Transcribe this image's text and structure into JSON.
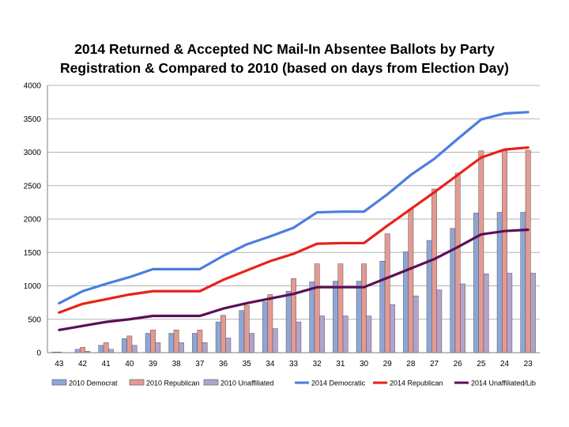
{
  "chart_data": {
    "type": "bar",
    "title_lines": [
      "2014 Returned & Accepted NC Mail-In Absentee Ballots by Party",
      "Registration & Compared to 2010 (based on days from Election Day)"
    ],
    "xlabel": "",
    "ylabel": "",
    "categories": [
      "43",
      "42",
      "41",
      "40",
      "39",
      "38",
      "37",
      "36",
      "35",
      "34",
      "33",
      "32",
      "31",
      "30",
      "29",
      "28",
      "27",
      "26",
      "25",
      "24",
      "23"
    ],
    "ylim": [
      0,
      4000
    ],
    "yticks": [
      0,
      500,
      1000,
      1500,
      2000,
      2500,
      3000,
      3500,
      4000
    ],
    "grid": true,
    "legend_position": "bottom",
    "bar_series": [
      {
        "name": "2010 Democrat",
        "color": "#8ea6d6",
        "values": [
          10,
          50,
          110,
          210,
          290,
          290,
          290,
          460,
          630,
          760,
          920,
          1060,
          1070,
          1070,
          1370,
          1510,
          1680,
          1860,
          2090,
          2100,
          2100
        ]
      },
      {
        "name": "2010 Republican",
        "color": "#e49a92",
        "values": [
          10,
          80,
          150,
          250,
          340,
          340,
          340,
          560,
          710,
          870,
          1110,
          1330,
          1330,
          1330,
          1780,
          2150,
          2450,
          2690,
          3020,
          3020,
          3030
        ]
      },
      {
        "name": "2010 Unaffiliated",
        "color": "#b3a3cc",
        "values": [
          0,
          20,
          50,
          110,
          150,
          150,
          150,
          220,
          290,
          360,
          460,
          550,
          550,
          550,
          720,
          850,
          940,
          1030,
          1180,
          1190,
          1190
        ]
      }
    ],
    "line_series": [
      {
        "name": "2014 Democratic",
        "color": "#4c7ddf",
        "values": [
          740,
          920,
          1030,
          1130,
          1250,
          1250,
          1250,
          1450,
          1620,
          1740,
          1870,
          2100,
          2110,
          2110,
          2370,
          2660,
          2900,
          3200,
          3490,
          3580,
          3600
        ]
      },
      {
        "name": "2014 Republican",
        "color": "#e8221a",
        "values": [
          600,
          730,
          800,
          870,
          920,
          920,
          920,
          1090,
          1230,
          1370,
          1480,
          1630,
          1640,
          1640,
          1900,
          2150,
          2400,
          2660,
          2920,
          3040,
          3070
        ]
      },
      {
        "name": "2014 Unaffiliated/Lib",
        "color": "#5b0f57",
        "values": [
          340,
          400,
          460,
          500,
          550,
          550,
          550,
          660,
          740,
          810,
          880,
          980,
          980,
          980,
          1120,
          1260,
          1400,
          1580,
          1770,
          1820,
          1840
        ]
      }
    ]
  }
}
